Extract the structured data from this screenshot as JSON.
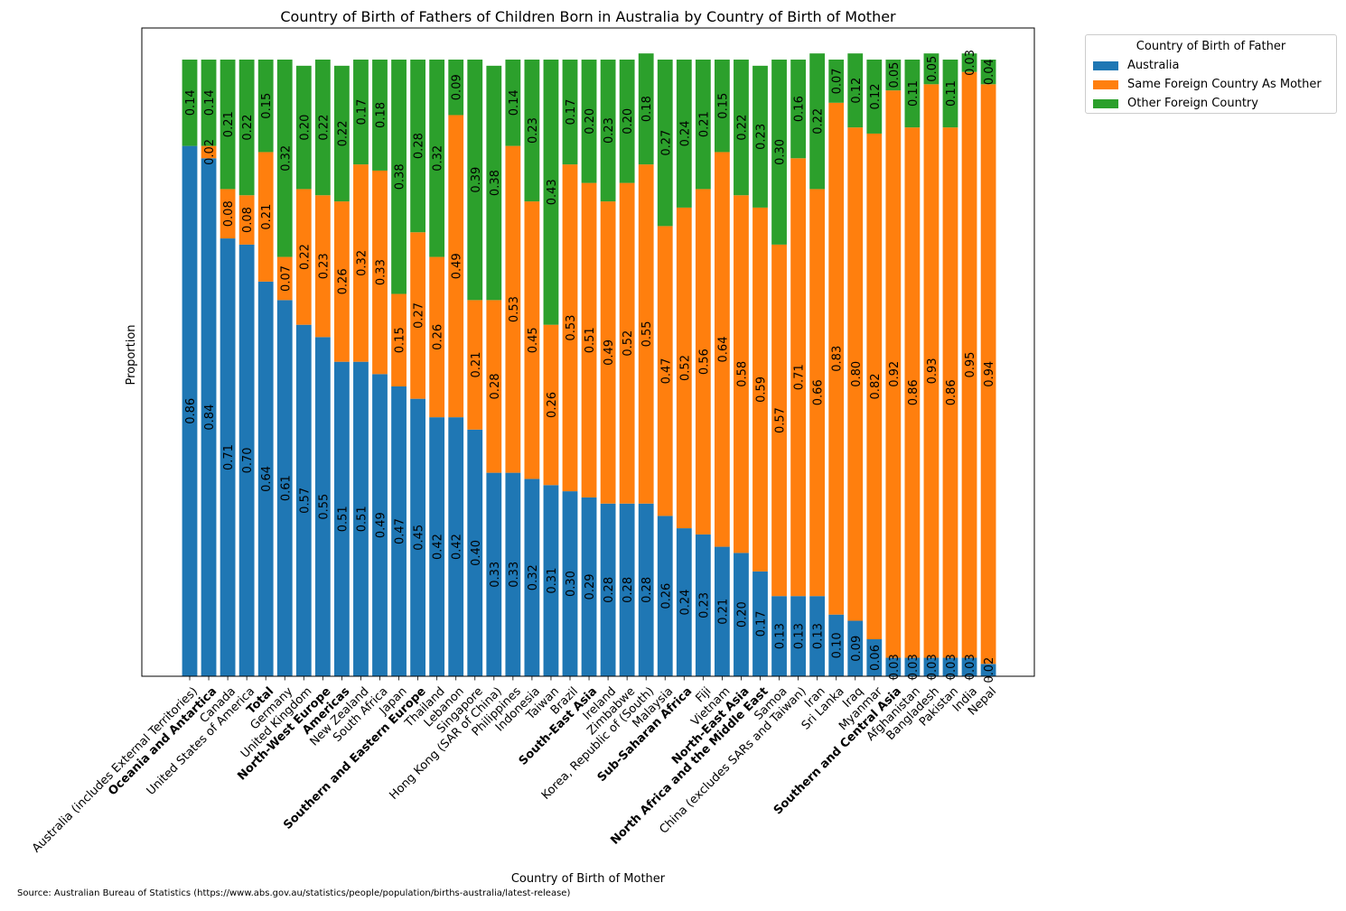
{
  "chart_data": {
    "type": "bar",
    "stacked": true,
    "title": "Country of Birth of Fathers of Children Born in Australia by Country of Birth of Mother",
    "xlabel": "Country of Birth of Mother",
    "ylabel": "Proportion",
    "ylim": [
      0,
      1
    ],
    "grid": false,
    "legend_title": "Country of Birth of Father",
    "legend_position": "outside top-right",
    "categories": [
      "Australia (includes External Territories)",
      "Oceania and Antartica",
      "Canada",
      "United States of America",
      "Total",
      "Germany",
      "United Kingdom",
      "North-West Europe",
      "Americas",
      "New Zealand",
      "South Africa",
      "Japan",
      "Southern and Eastern Europe",
      "Thailand",
      "Lebanon",
      "Singapore",
      "Hong Kong (SAR of China)",
      "Philippines",
      "Indonesia",
      "Taiwan",
      "Brazil",
      "South-East Asia",
      "Ireland",
      "Zimbabwe",
      "Korea, Republic of (South)",
      "Malaysia",
      "Sub-Saharan Africa",
      "Fiji",
      "Vietnam",
      "North-East Asia",
      "North Africa and the Middle East",
      "Samoa",
      "China (excludes SARs and Taiwan)",
      "Iran",
      "Sri Lanka",
      "Iraq",
      "Myanmar",
      "Southern and Central Asia",
      "Afghanistan",
      "Bangladesh",
      "Pakistan",
      "India",
      "Nepal"
    ],
    "bold_categories": [
      "Oceania and Antartica",
      "Total",
      "North-West Europe",
      "Americas",
      "Southern and Eastern Europe",
      "South-East Asia",
      "Sub-Saharan Africa",
      "North-East Asia",
      "North Africa and the Middle East",
      "Southern and Central Asia"
    ],
    "series": [
      {
        "name": "Australia",
        "color": "#1f77b4",
        "values": [
          0.86,
          0.84,
          0.71,
          0.7,
          0.64,
          0.61,
          0.57,
          0.55,
          0.51,
          0.51,
          0.49,
          0.47,
          0.45,
          0.42,
          0.42,
          0.4,
          0.33,
          0.33,
          0.32,
          0.31,
          0.3,
          0.29,
          0.28,
          0.28,
          0.28,
          0.26,
          0.24,
          0.23,
          0.21,
          0.2,
          0.17,
          0.13,
          0.13,
          0.13,
          0.1,
          0.09,
          0.06,
          0.03,
          0.03,
          0.03,
          0.03,
          0.03,
          0.02
        ]
      },
      {
        "name": "Same Foreign Country As Mother",
        "color": "#ff7f0e",
        "values": [
          0,
          0.02,
          0.08,
          0.08,
          0.21,
          0.07,
          0.22,
          0.23,
          0.26,
          0.32,
          0.33,
          0.15,
          0.27,
          0.26,
          0.49,
          0.21,
          0.28,
          0.53,
          0.45,
          0.26,
          0.53,
          0.51,
          0.49,
          0.52,
          0.55,
          0.47,
          0.52,
          0.56,
          0.64,
          0.58,
          0.59,
          0.57,
          0.71,
          0.66,
          0.83,
          0.8,
          0.82,
          0.92,
          0.86,
          0.93,
          0.86,
          0.95,
          0.94
        ]
      },
      {
        "name": "Other Foreign Country",
        "color": "#2ca02c",
        "values": [
          0.14,
          0.14,
          0.21,
          0.22,
          0.15,
          0.32,
          0.2,
          0.22,
          0.22,
          0.17,
          0.18,
          0.38,
          0.28,
          0.32,
          0.09,
          0.39,
          0.38,
          0.14,
          0.23,
          0.43,
          0.17,
          0.2,
          0.23,
          0.2,
          0.18,
          0.27,
          0.24,
          0.21,
          0.15,
          0.22,
          0.23,
          0.3,
          0.16,
          0.22,
          0.07,
          0.12,
          0.12,
          0.05,
          0.11,
          0.05,
          0.11,
          0.03,
          0.04
        ]
      }
    ],
    "source_note": "Source: Australian Bureau of Statistics (https://www.abs.gov.au/statistics/people/population/births-australia/latest-release)"
  }
}
